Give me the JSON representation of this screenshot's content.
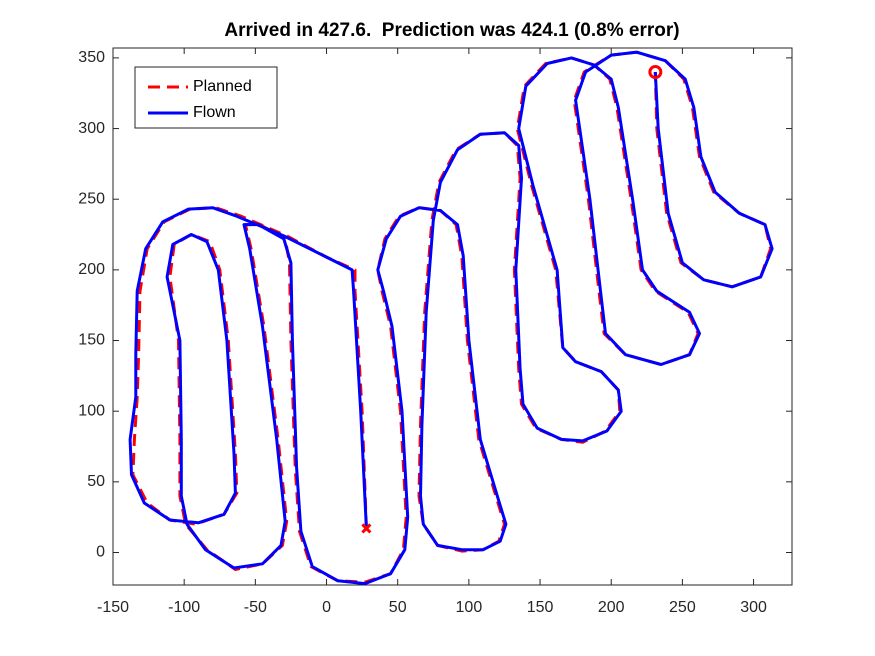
{
  "chart_data": {
    "type": "line",
    "title": "Arrived in 427.6.  Prediction was 424.1 (0.8% error)",
    "xlim": [
      -150,
      327
    ],
    "ylim": [
      -23,
      357
    ],
    "xticks": [
      -150,
      -100,
      -50,
      0,
      50,
      100,
      150,
      200,
      250,
      300
    ],
    "yticks": [
      0,
      50,
      100,
      150,
      200,
      250,
      300,
      350
    ],
    "grid": false,
    "legend": "northwest",
    "series": [
      {
        "name": "Planned",
        "color": "#ff0000",
        "dash": true,
        "x": [
          28,
          25,
          20,
          20,
          0,
          -28,
          -60,
          -78,
          -96,
          -114,
          -126,
          -131,
          -132,
          -133,
          -135,
          -136,
          -126,
          -110,
          -92,
          -72,
          -63,
          -64,
          -69,
          -75,
          -82,
          -95,
          -107,
          -110,
          -104,
          -103,
          -103,
          -99,
          -84,
          -64,
          -45,
          -31,
          -28,
          -34,
          -44,
          -53,
          -57,
          -47,
          -29,
          -26,
          -25,
          -22,
          -19,
          -11,
          8,
          27,
          45,
          54,
          56,
          52,
          45,
          39,
          36,
          41,
          51,
          65,
          80,
          91,
          95,
          99,
          107,
          119,
          125,
          121,
          110,
          95,
          78,
          68,
          65,
          66,
          69,
          74,
          79,
          91,
          108,
          125,
          134,
          136,
          132,
          135,
          137,
          147,
          165,
          180,
          196,
          206,
          205,
          193,
          175,
          166,
          161,
          144,
          134,
          139,
          154,
          172,
          188,
          199,
          204,
          214,
          221,
          231,
          254,
          261,
          255,
          235,
          210,
          195,
          192,
          184,
          174,
          181,
          200,
          218,
          238,
          251,
          257,
          262,
          272,
          290,
          308,
          312,
          305,
          285,
          265,
          249,
          239,
          232,
          231
        ],
        "values": [
          17,
          100,
          185,
          200,
          209,
          224,
          238,
          244,
          243,
          234,
          215,
          185,
          140,
          110,
          80,
          55,
          35,
          23,
          20,
          27,
          42,
          70,
          150,
          200,
          220,
          225,
          218,
          195,
          150,
          80,
          40,
          20,
          2,
          -12,
          -8,
          5,
          22,
          80,
          160,
          215,
          232,
          232,
          222,
          205,
          150,
          60,
          15,
          -10,
          -20,
          -21,
          -15,
          2,
          25,
          100,
          160,
          185,
          200,
          222,
          238,
          244,
          242,
          232,
          210,
          150,
          80,
          40,
          20,
          8,
          2,
          1,
          5,
          20,
          40,
          90,
          170,
          235,
          262,
          285,
          296,
          297,
          288,
          265,
          200,
          130,
          105,
          88,
          80,
          78,
          86,
          100,
          115,
          128,
          135,
          145,
          200,
          260,
          300,
          330,
          346,
          350,
          345,
          335,
          315,
          250,
          200,
          185,
          170,
          155,
          140,
          133,
          140,
          155,
          180,
          250,
          320,
          340,
          352,
          354,
          348,
          335,
          315,
          280,
          255,
          240,
          232,
          215,
          195,
          188,
          193,
          205,
          240,
          300,
          340
        ]
      },
      {
        "name": "Flown",
        "color": "#0000ff",
        "dash": false,
        "x": [
          28,
          24,
          19,
          18,
          0,
          -30,
          -63,
          -80,
          -97,
          -115,
          -127,
          -133,
          -134,
          -134,
          -138,
          -137,
          -128,
          -110,
          -90,
          -72,
          -64,
          -65,
          -70,
          -76,
          -84,
          -95,
          -108,
          -112,
          -103,
          -102,
          -102,
          -98,
          -85,
          -65,
          -45,
          -32,
          -29,
          -35,
          -45,
          -54,
          -58,
          -48,
          -30,
          -25,
          -24,
          -21,
          -18,
          -10,
          8,
          27,
          45,
          55,
          57,
          53,
          46,
          40,
          36,
          42,
          52,
          65,
          80,
          92,
          96,
          100,
          108,
          120,
          126,
          122,
          110,
          95,
          78,
          68,
          66,
          67,
          70,
          75,
          80,
          92,
          108,
          125,
          135,
          137,
          133,
          136,
          138,
          148,
          165,
          180,
          197,
          207,
          205,
          193,
          175,
          166,
          162,
          145,
          135,
          140,
          155,
          172,
          188,
          200,
          205,
          215,
          222,
          232,
          255,
          262,
          255,
          235,
          210,
          196,
          193,
          185,
          175,
          182,
          200,
          218,
          238,
          252,
          258,
          263,
          273,
          290,
          308,
          313,
          305,
          285,
          265,
          250,
          240,
          233,
          231
        ],
        "values": [
          17,
          100,
          185,
          200,
          209,
          224,
          238,
          244,
          243,
          234,
          215,
          185,
          140,
          110,
          80,
          55,
          35,
          23,
          21,
          27,
          42,
          70,
          150,
          200,
          220,
          225,
          218,
          195,
          150,
          80,
          40,
          20,
          2,
          -11,
          -8,
          5,
          22,
          80,
          160,
          215,
          232,
          232,
          222,
          205,
          150,
          60,
          15,
          -10,
          -20,
          -22,
          -15,
          2,
          25,
          100,
          160,
          185,
          200,
          222,
          238,
          244,
          242,
          232,
          210,
          150,
          80,
          40,
          20,
          8,
          2,
          2,
          5,
          20,
          40,
          90,
          170,
          235,
          262,
          285,
          296,
          297,
          288,
          265,
          200,
          130,
          105,
          88,
          80,
          79,
          86,
          100,
          115,
          128,
          135,
          145,
          200,
          260,
          300,
          330,
          346,
          350,
          345,
          335,
          315,
          250,
          200,
          185,
          170,
          155,
          140,
          133,
          140,
          155,
          180,
          250,
          320,
          340,
          352,
          354,
          348,
          335,
          315,
          280,
          255,
          240,
          232,
          215,
          195,
          188,
          193,
          205,
          240,
          300,
          340
        ]
      }
    ],
    "markers": [
      {
        "x": 28,
        "y": 17,
        "symbol": "x",
        "color": "#ff0000"
      },
      {
        "x": 231,
        "y": 340,
        "symbol": "o",
        "color": "#ff0000"
      }
    ]
  }
}
